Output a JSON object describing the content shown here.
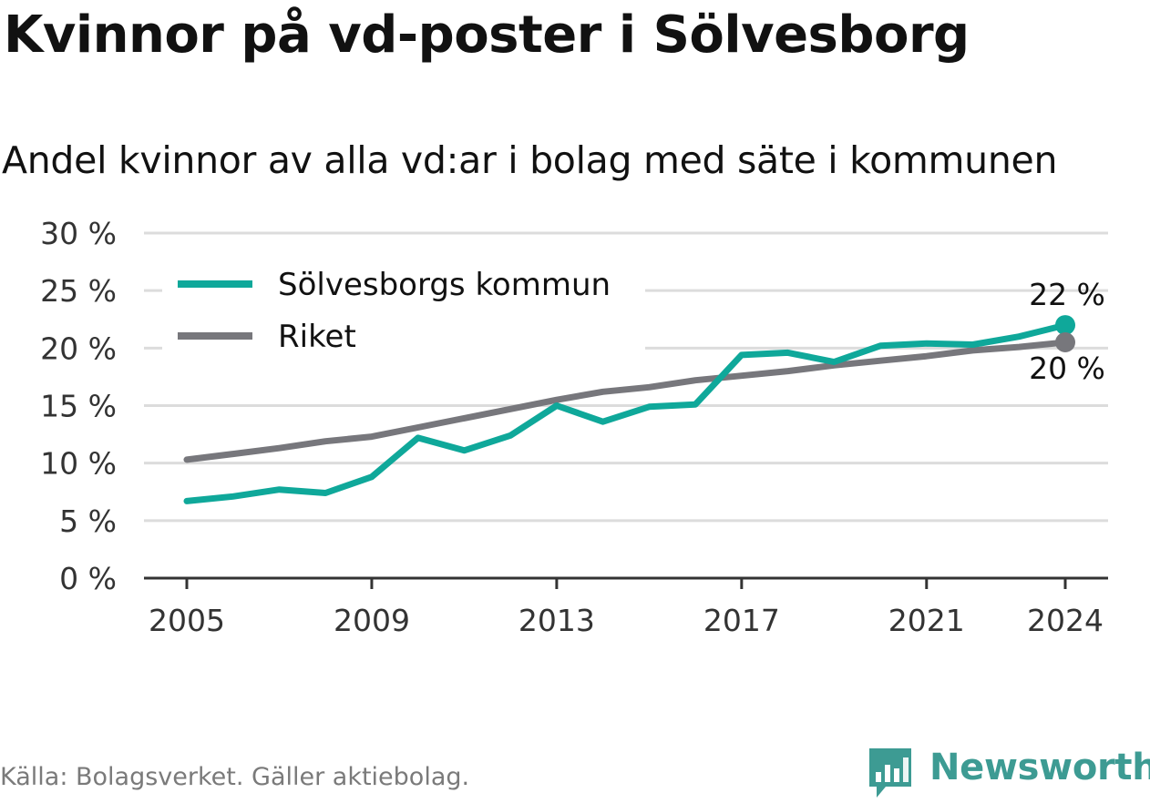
{
  "title": "Kvinnor på vd-poster i Sölvesborg",
  "subtitle": "Andel kvinnor av alla vd:ar i bolag med säte i kommunen",
  "source": "Källa: Bolagsverket. Gäller aktiebolag.",
  "logo": {
    "text": "Newsworthy",
    "icon": "bar-chart-badge-icon"
  },
  "colors": {
    "kommun": "#0fa89a",
    "riket": "#77777c",
    "grid": "#dcdcdc",
    "axis": "#333333",
    "logo": "#3d9b93"
  },
  "chart_data": {
    "type": "line",
    "x": [
      2005,
      2006,
      2007,
      2008,
      2009,
      2010,
      2011,
      2012,
      2013,
      2014,
      2015,
      2016,
      2017,
      2018,
      2019,
      2020,
      2021,
      2022,
      2023,
      2024
    ],
    "series": [
      {
        "name": "Sölvesborgs kommun",
        "color": "#0fa89a",
        "values": [
          6.7,
          7.1,
          7.7,
          7.4,
          8.8,
          12.2,
          11.1,
          12.4,
          15.0,
          13.6,
          14.9,
          15.1,
          19.4,
          19.6,
          18.8,
          20.2,
          20.4,
          20.3,
          21.0,
          22.0
        ],
        "end_label": "22 %"
      },
      {
        "name": "Riket",
        "color": "#77777c",
        "values": [
          10.3,
          10.8,
          11.3,
          11.9,
          12.3,
          13.1,
          13.9,
          14.7,
          15.5,
          16.2,
          16.6,
          17.2,
          17.6,
          18.0,
          18.5,
          18.9,
          19.3,
          19.8,
          20.1,
          20.5
        ],
        "end_label": "20 %"
      }
    ],
    "xticks": [
      2005,
      2009,
      2013,
      2017,
      2021,
      2024
    ],
    "yticks": [
      0,
      5,
      10,
      15,
      20,
      25,
      30
    ],
    "ytick_labels": [
      "0 %",
      "5 %",
      "10 %",
      "15 %",
      "20 %",
      "25 %",
      "30 %"
    ],
    "ylim": [
      0,
      30
    ],
    "xlim": [
      2005,
      2024
    ],
    "legend": "top-left",
    "grid": true,
    "title": "Kvinnor på vd-poster i Sölvesborg",
    "xlabel": "",
    "ylabel": ""
  }
}
